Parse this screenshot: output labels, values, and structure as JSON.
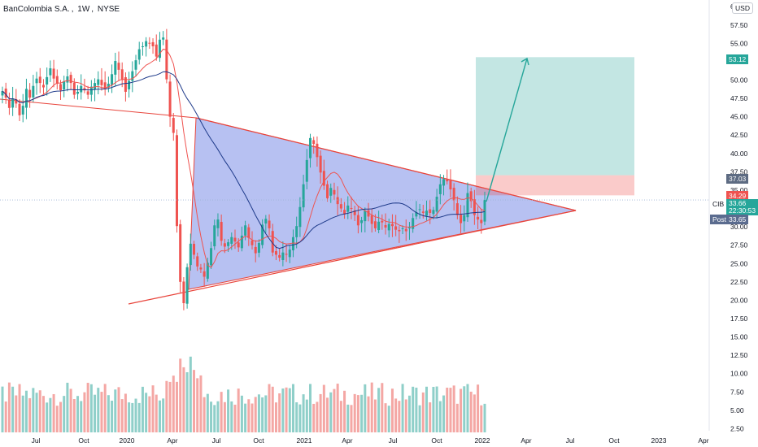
{
  "header": {
    "symbol_name": "BanColombia S.A.",
    "interval": "1W",
    "exchange": "NYSE",
    "currency": "USD"
  },
  "price_labels": {
    "target": "53.12",
    "entry": "37.03",
    "stop": "34.29",
    "symbol": "CIB",
    "last": "33.66",
    "countdown": "22:30:53",
    "post_label": "Post",
    "post_price": "33.65"
  },
  "colors": {
    "up": "#26a69a",
    "down": "#ef5350",
    "up_volume": "#8fcfc9",
    "down_volume": "#f4a7a4",
    "triangle_fill": "#7b8ee8",
    "trendline": "#e8453c",
    "target_zone": "#26a69a",
    "stop_zone": "#ef5350",
    "ma_fast": "#ef5350",
    "ma_slow": "#1e3a8a",
    "post_badge": "#5b6c8f"
  },
  "chart_data": {
    "type": "candlestick",
    "title": "BanColombia S.A., 1W, NYSE",
    "y_axis": {
      "ticks": [
        "2.50",
        "5.00",
        "7.50",
        "10.00",
        "12.50",
        "15.00",
        "17.50",
        "20.00",
        "22.50",
        "25.00",
        "27.50",
        "30.00",
        "32.50",
        "35.00",
        "37.50",
        "40.00",
        "42.50",
        "45.00",
        "47.50",
        "50.00",
        "52.50",
        "55.00",
        "57.50",
        "60"
      ],
      "range": [
        0,
        60
      ],
      "unit": "USD"
    },
    "x_axis": {
      "ticks": [
        "Jul",
        "Oct",
        "2020",
        "Apr",
        "Jul",
        "Oct",
        "2021",
        "Apr",
        "Jul",
        "Oct",
        "2022",
        "Apr",
        "Jul",
        "Oct",
        "2023",
        "Apr"
      ]
    },
    "candles_close": [
      48.5,
      47.6,
      46.2,
      47.5,
      46.8,
      45.2,
      46.5,
      48.8,
      47.6,
      49.2,
      50.2,
      49.6,
      49.0,
      50.4,
      51.6,
      50.2,
      49.5,
      48.6,
      49.8,
      50.5,
      49.6,
      48.0,
      48.4,
      49.2,
      48.6,
      48.0,
      49.1,
      49.6,
      50.1,
      49.3,
      48.8,
      49.5,
      50.8,
      52.6,
      51.4,
      50.0,
      48.4,
      49.9,
      51.2,
      52.7,
      54.2,
      54.6,
      55.3,
      55.0,
      54.6,
      53.2,
      55.5,
      55.8,
      50.1,
      45.0,
      42.8,
      30.1,
      22.5,
      19.6,
      24.5,
      27.7,
      26.2,
      24.6,
      24.2,
      23.2,
      25.1,
      27.1,
      30.2,
      31.0,
      28.1,
      27.3,
      27.9,
      28.6,
      28.0,
      27.2,
      28.8,
      30.2,
      28.5,
      27.5,
      26.4,
      27.8,
      30.3,
      31.1,
      29.8,
      26.5,
      26.2,
      25.8,
      26.5,
      26.2,
      26.9,
      28.6,
      30.1,
      32.7,
      35.8,
      39.1,
      42.1,
      41.3,
      39.5,
      37.4,
      35.6,
      33.9,
      35.3,
      34.4,
      33.1,
      32.5,
      31.7,
      32.9,
      32.5,
      31.6,
      30.2,
      30.9,
      32.2,
      31.4,
      30.4,
      29.8,
      30.7,
      30.6,
      29.9,
      30.4,
      30.1,
      29.6,
      29.4,
      29.8,
      29.4,
      29.9,
      31.2,
      32.0,
      32.4,
      31.9,
      32.2,
      31.9,
      32.3,
      34.1,
      35.8,
      36.5,
      36.2,
      35.1,
      33.6,
      31.6,
      30.5,
      31.6,
      34.6,
      33.5,
      31.6,
      31.0,
      30.5,
      33.66
    ],
    "volume_range": [
      0,
      12
    ],
    "moving_averages": [
      {
        "name": "MA fast"
      },
      {
        "name": "MA slow"
      }
    ],
    "annotations": {
      "triangle_apex_date": "2022-07",
      "trendline_upper": [
        [
          "2020-05",
          45.0
        ],
        [
          "2022-07",
          31.0
        ]
      ],
      "trendline_lower": [
        [
          "2020-05",
          22.0
        ],
        [
          "2022-07",
          31.0
        ]
      ],
      "long_position": {
        "entry": 37.03,
        "target": 53.12,
        "stop": 34.29
      },
      "projection_arrow": [
        [
          "2022-01",
          34.0
        ],
        [
          "2022-04",
          53.12
        ]
      ]
    }
  }
}
